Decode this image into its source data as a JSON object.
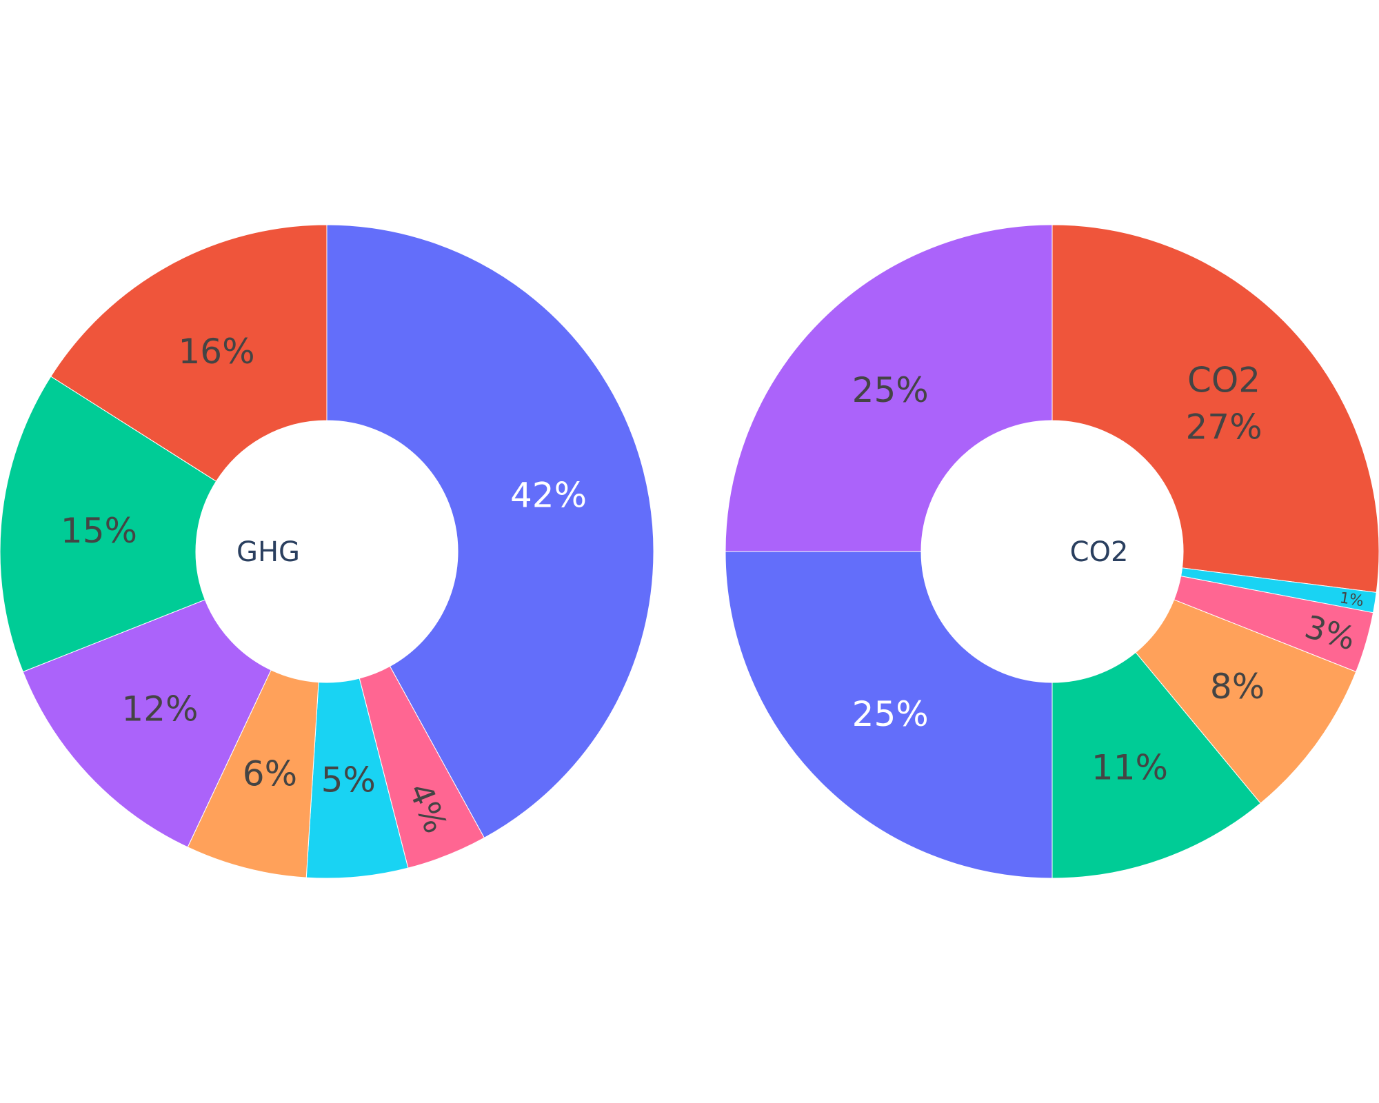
{
  "chart_data": [
    {
      "type": "pie",
      "hole": true,
      "center_label": "GHG",
      "slices": [
        {
          "value": 42,
          "label_text": "42%",
          "color": "#636efa",
          "label_color": "#ffffff"
        },
        {
          "value": 4,
          "label_text": "4%",
          "color": "#ff6692",
          "label_color": "#444444"
        },
        {
          "value": 5,
          "label_text": "5%",
          "color": "#19d3f3",
          "label_color": "#444444"
        },
        {
          "value": 6,
          "label_text": "6%",
          "color": "#ffa15a",
          "label_color": "#444444"
        },
        {
          "value": 12,
          "label_text": "12%",
          "color": "#ab63fa",
          "label_color": "#444444"
        },
        {
          "value": 15,
          "label_text": "15%",
          "color": "#00cc96",
          "label_color": "#444444"
        },
        {
          "value": 16,
          "label_text": "16%",
          "color": "#ef553b",
          "label_color": "#444444"
        }
      ]
    },
    {
      "type": "pie",
      "hole": true,
      "center_label": "CO2",
      "slices": [
        {
          "value": 27,
          "name": "CO2",
          "label_text": "27%",
          "color": "#ef553b",
          "label_color": "#444444"
        },
        {
          "value": 1,
          "label_text": "1%",
          "color": "#19d3f3",
          "label_color": "#444444"
        },
        {
          "value": 3,
          "label_text": "3%",
          "color": "#ff6692",
          "label_color": "#444444"
        },
        {
          "value": 8,
          "label_text": "8%",
          "color": "#ffa15a",
          "label_color": "#444444"
        },
        {
          "value": 11,
          "label_text": "11%",
          "color": "#00cc96",
          "label_color": "#444444"
        },
        {
          "value": 25,
          "label_text": "25%",
          "color": "#636efa",
          "label_color": "#ffffff"
        },
        {
          "value": 25,
          "label_text": "25%",
          "color": "#ab63fa",
          "label_color": "#444444"
        }
      ]
    }
  ]
}
